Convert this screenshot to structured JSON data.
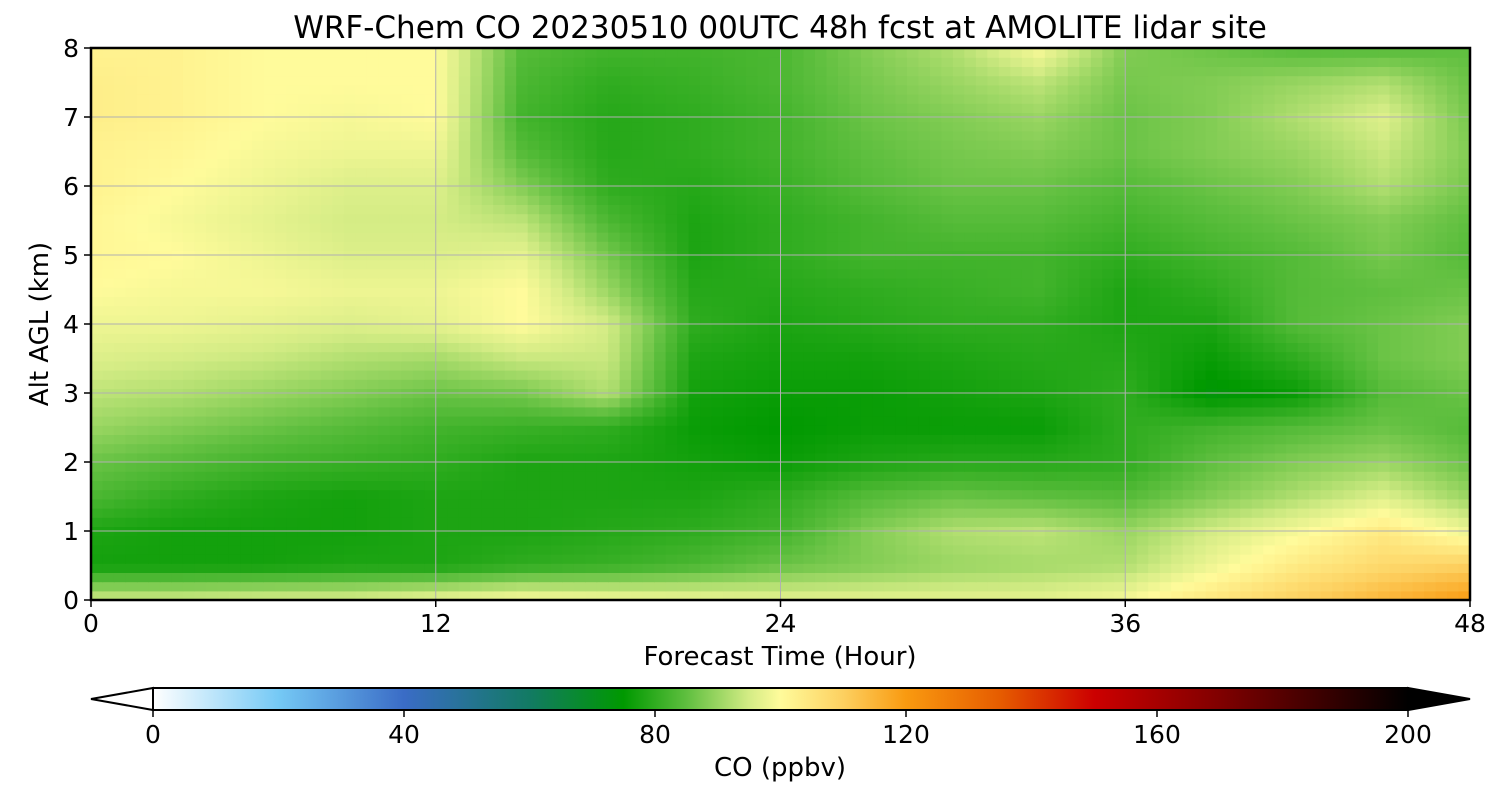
{
  "chart_data": {
    "type": "heatmap",
    "title": "WRF-Chem CO  20230510 00UTC 48h fcst at AMOLITE lidar site",
    "xlabel": "Forecast Time (Hour)",
    "ylabel": "Alt AGL (km)",
    "xlim": [
      0,
      48
    ],
    "ylim": [
      0,
      8
    ],
    "xticks": [
      "0",
      "12",
      "24",
      "36",
      "48"
    ],
    "yticks": [
      "0",
      "1",
      "2",
      "3",
      "4",
      "5",
      "6",
      "7",
      "8"
    ],
    "grid": true,
    "x": [
      0,
      3,
      6,
      9,
      12,
      15,
      18,
      21,
      24,
      27,
      30,
      33,
      36,
      39,
      42,
      45,
      48
    ],
    "y": [
      0,
      0.5,
      1,
      1.5,
      2,
      2.5,
      3,
      3.5,
      4,
      4.5,
      5,
      5.5,
      6,
      6.5,
      7,
      7.5,
      8
    ],
    "values": [
      [
        95,
        95,
        96,
        96,
        98,
        100,
        99,
        98,
        97,
        97,
        97,
        97,
        99,
        105,
        110,
        115,
        120
      ],
      [
        77,
        77,
        77,
        78,
        78,
        80,
        81,
        83,
        86,
        88,
        90,
        91,
        92,
        98,
        104,
        108,
        110
      ],
      [
        78,
        77,
        77,
        77,
        78,
        78,
        79,
        80,
        82,
        88,
        92,
        93,
        90,
        95,
        99,
        104,
        98
      ],
      [
        83,
        80,
        78,
        77,
        78,
        78,
        78,
        78,
        80,
        84,
        86,
        85,
        84,
        88,
        92,
        96,
        90
      ],
      [
        86,
        84,
        82,
        81,
        80,
        78,
        78,
        77,
        76,
        78,
        79,
        79,
        80,
        85,
        88,
        90,
        86
      ],
      [
        90,
        88,
        86,
        84,
        82,
        81,
        80,
        76,
        75,
        76,
        76,
        76,
        80,
        82,
        84,
        86,
        84
      ],
      [
        93,
        92,
        90,
        88,
        86,
        87,
        92,
        77,
        76,
        76,
        77,
        78,
        80,
        74,
        76,
        84,
        86
      ],
      [
        96,
        95,
        94,
        92,
        91,
        94,
        94,
        78,
        77,
        77,
        78,
        79,
        79,
        76,
        80,
        86,
        88
      ],
      [
        98,
        98,
        97,
        96,
        97,
        100,
        95,
        80,
        78,
        79,
        80,
        80,
        78,
        78,
        84,
        86,
        88
      ],
      [
        100,
        99,
        99,
        98,
        98,
        100,
        90,
        79,
        79,
        80,
        81,
        82,
        78,
        80,
        84,
        85,
        86
      ],
      [
        101,
        100,
        98,
        96,
        96,
        97,
        87,
        78,
        80,
        82,
        82,
        82,
        80,
        82,
        84,
        87,
        84
      ],
      [
        101,
        99,
        97,
        95,
        95,
        93,
        83,
        78,
        80,
        82,
        84,
        84,
        82,
        84,
        86,
        88,
        85
      ],
      [
        102,
        100,
        98,
        96,
        96,
        88,
        80,
        79,
        81,
        84,
        86,
        86,
        84,
        86,
        88,
        92,
        87
      ],
      [
        102,
        101,
        99,
        98,
        98,
        84,
        79,
        80,
        82,
        85,
        87,
        88,
        86,
        88,
        90,
        94,
        88
      ],
      [
        103,
        102,
        100,
        99,
        100,
        82,
        79,
        80,
        82,
        86,
        88,
        90,
        86,
        88,
        92,
        96,
        87
      ],
      [
        103,
        102,
        100,
        100,
        100,
        83,
        80,
        81,
        83,
        87,
        90,
        93,
        87,
        88,
        90,
        92,
        86
      ],
      [
        102,
        102,
        100,
        100,
        100,
        84,
        82,
        82,
        83,
        88,
        92,
        99,
        88,
        86,
        84,
        84,
        85
      ]
    ],
    "colorbar": {
      "label": "CO  (ppbv)",
      "min": 0,
      "max": 200,
      "ticks": [
        "0",
        "40",
        "80",
        "120",
        "160",
        "200"
      ],
      "extend": "both",
      "stops": [
        {
          "v": 0,
          "c": "#ffffff"
        },
        {
          "v": 20,
          "c": "#75c9f5"
        },
        {
          "v": 40,
          "c": "#3a6cc6"
        },
        {
          "v": 60,
          "c": "#127a63"
        },
        {
          "v": 75,
          "c": "#009900"
        },
        {
          "v": 85,
          "c": "#5fbf3f"
        },
        {
          "v": 95,
          "c": "#d4ec85"
        },
        {
          "v": 100,
          "c": "#fffb9b"
        },
        {
          "v": 110,
          "c": "#fdd060"
        },
        {
          "v": 120,
          "c": "#f99a10"
        },
        {
          "v": 135,
          "c": "#e65c00"
        },
        {
          "v": 150,
          "c": "#cc0000"
        },
        {
          "v": 170,
          "c": "#800000"
        },
        {
          "v": 200,
          "c": "#000000"
        }
      ]
    }
  }
}
